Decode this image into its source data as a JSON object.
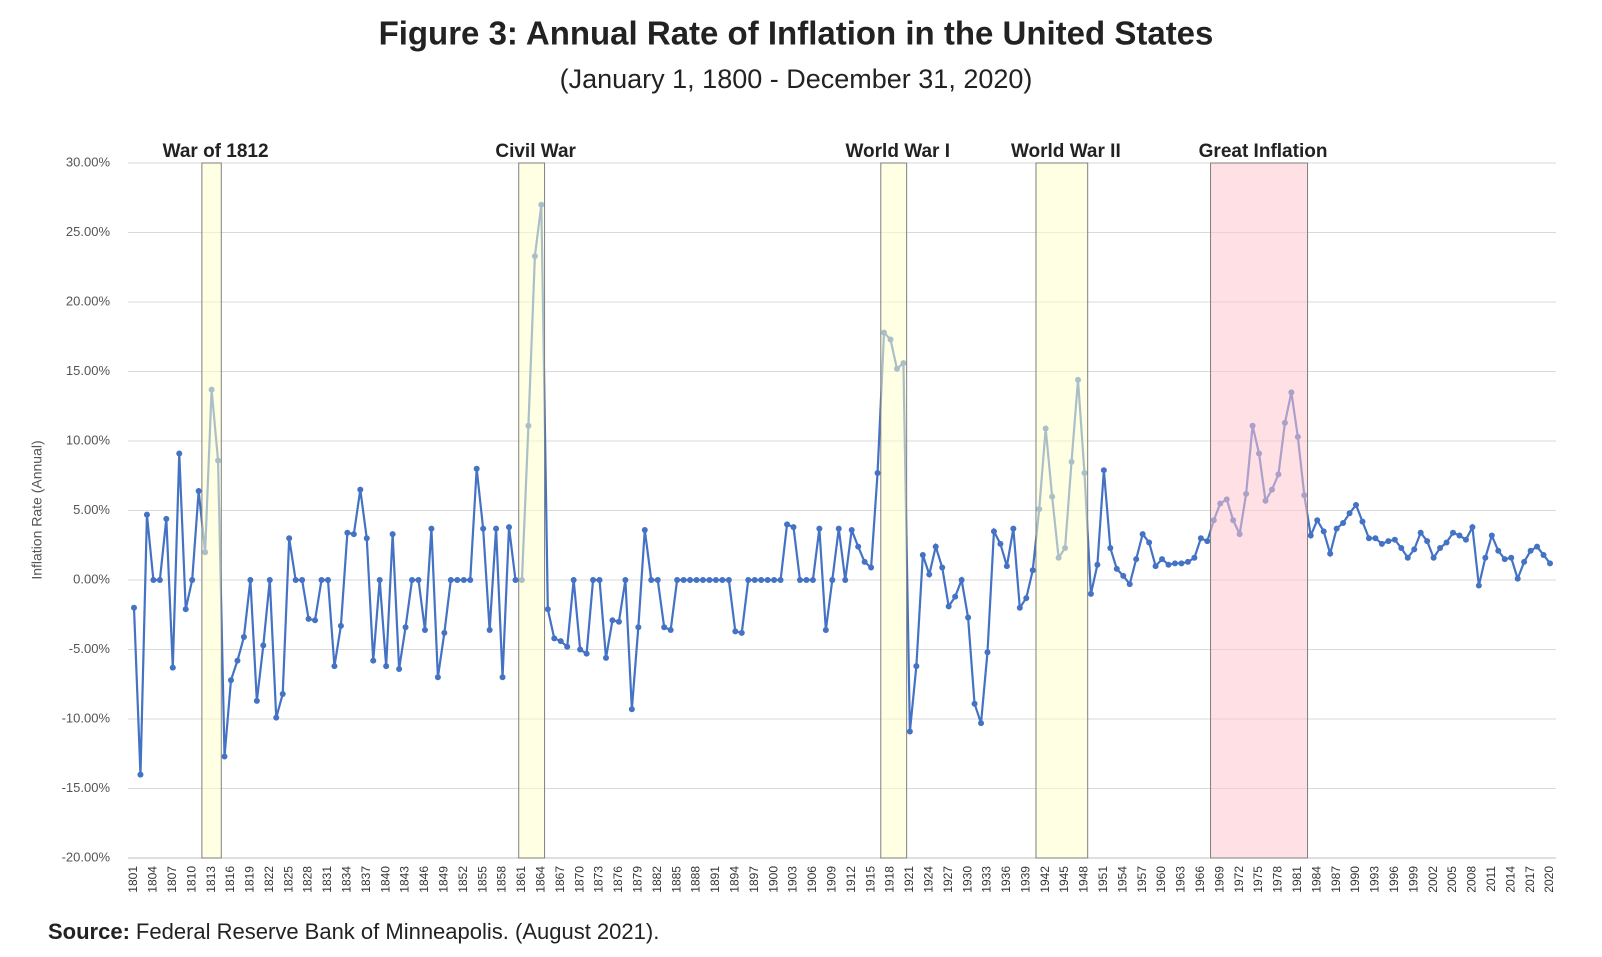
{
  "chart_data": {
    "type": "line",
    "title": "Figure 3: Annual Rate of Inflation in the United States",
    "subtitle": "(January 1, 1800 - December 31, 2020)",
    "y_label": "Inflation Rate (Annual)",
    "source": {
      "label": "Source:",
      "text": "Federal Reserve Bank of Minneapolis. (August 2021)."
    },
    "color": "#4472c4",
    "grid": true,
    "ylim": [
      -20,
      30
    ],
    "yticks": [
      {
        "value": -20,
        "label": "-20.00%"
      },
      {
        "value": -15,
        "label": "-15.00%"
      },
      {
        "value": -10,
        "label": "-10.00%"
      },
      {
        "value": -5,
        "label": "-5.00%"
      },
      {
        "value": 0,
        "label": "0.00%"
      },
      {
        "value": 5,
        "label": "5.00%"
      },
      {
        "value": 10,
        "label": "10.00%"
      },
      {
        "value": 15,
        "label": "15.00%"
      },
      {
        "value": 20,
        "label": "20.00%"
      },
      {
        "value": 25,
        "label": "25.00%"
      },
      {
        "value": 30,
        "label": "30.00%"
      }
    ],
    "categories": [
      "1801",
      null,
      null,
      "1804",
      null,
      null,
      "1807",
      null,
      null,
      "1810",
      null,
      null,
      "1813",
      null,
      null,
      "1816",
      null,
      null,
      "1819",
      null,
      null,
      "1822",
      null,
      null,
      "1825",
      null,
      null,
      "1828",
      null,
      null,
      "1831",
      null,
      null,
      "1834",
      null,
      null,
      "1837",
      null,
      null,
      "1840",
      null,
      null,
      "1843",
      null,
      null,
      "1846",
      null,
      null,
      "1849",
      null,
      null,
      "1852",
      null,
      null,
      "1855",
      null,
      null,
      "1858",
      null,
      null,
      "1861",
      null,
      null,
      "1864",
      null,
      null,
      "1867",
      null,
      null,
      "1870",
      null,
      null,
      "1873",
      null,
      null,
      "1876",
      null,
      null,
      "1879",
      null,
      null,
      "1882",
      null,
      null,
      "1885",
      null,
      null,
      "1888",
      null,
      null,
      "1891",
      null,
      null,
      "1894",
      null,
      null,
      "1897",
      null,
      null,
      "1900",
      null,
      null,
      "1903",
      null,
      null,
      "1906",
      null,
      null,
      "1909",
      null,
      null,
      "1912",
      null,
      null,
      "1915",
      null,
      null,
      "1918",
      null,
      null,
      "1921",
      null,
      null,
      "1924",
      null,
      null,
      "1927",
      null,
      null,
      "1930",
      null,
      null,
      "1933",
      null,
      null,
      "1936",
      null,
      null,
      "1939",
      null,
      null,
      "1942",
      null,
      null,
      "1945",
      null,
      null,
      "1948",
      null,
      null,
      "1951",
      null,
      null,
      "1954",
      null,
      null,
      "1957",
      null,
      null,
      "1960",
      null,
      null,
      "1963",
      null,
      null,
      "1966",
      null,
      null,
      "1969",
      null,
      null,
      "1972",
      null,
      null,
      "1975",
      null,
      null,
      "1978",
      null,
      null,
      "1981",
      null,
      null,
      "1984",
      null,
      null,
      "1987",
      null,
      null,
      "1990",
      null,
      null,
      "1993",
      null,
      null,
      "1996",
      null,
      null,
      "1999",
      null,
      null,
      "2002",
      null,
      null,
      "2005",
      null,
      null,
      "2008",
      null,
      null,
      "2011",
      null,
      null,
      "2014",
      null,
      null,
      "2017",
      null,
      null,
      "2020"
    ],
    "values": [
      -2.0,
      -14.0,
      4.7,
      0,
      0,
      4.4,
      -6.3,
      9.1,
      -2.1,
      0,
      6.4,
      2.0,
      13.7,
      8.6,
      -12.7,
      -7.2,
      -5.8,
      -4.1,
      0,
      -8.7,
      -4.7,
      0,
      -9.9,
      -8.2,
      3.0,
      0,
      0,
      -2.8,
      -2.9,
      0,
      0,
      -6.2,
      -3.3,
      3.4,
      3.3,
      6.5,
      3.0,
      -5.8,
      0,
      -6.2,
      3.3,
      -6.4,
      -3.4,
      0,
      0,
      -3.6,
      3.7,
      -7.0,
      -3.8,
      0,
      0,
      0,
      0,
      8.0,
      3.7,
      -3.6,
      3.7,
      -7.0,
      3.8,
      0,
      0,
      11.1,
      23.3,
      27.0,
      -2.1,
      -4.2,
      -4.4,
      -4.8,
      0,
      -5.0,
      -5.3,
      0,
      0,
      -5.6,
      -2.9,
      -3.0,
      0,
      -9.3,
      -3.4,
      3.6,
      0,
      0,
      -3.4,
      -3.6,
      0,
      0,
      0,
      0,
      0,
      0,
      0,
      0,
      0,
      -3.7,
      -3.8,
      0,
      0,
      0,
      0,
      0,
      0,
      4.0,
      3.8,
      0,
      0,
      0,
      3.7,
      -3.6,
      0,
      3.7,
      0,
      3.6,
      2.4,
      1.3,
      0.9,
      7.7,
      17.8,
      17.3,
      15.2,
      15.6,
      -10.9,
      -6.2,
      1.8,
      0.4,
      2.4,
      0.9,
      -1.9,
      -1.2,
      0,
      -2.7,
      -8.9,
      -10.3,
      -5.2,
      3.5,
      2.6,
      1.0,
      3.7,
      -2.0,
      -1.3,
      0.7,
      5.1,
      10.9,
      6.0,
      1.6,
      2.3,
      8.5,
      14.4,
      7.7,
      -1.0,
      1.1,
      7.9,
      2.3,
      0.8,
      0.3,
      -0.3,
      1.5,
      3.3,
      2.7,
      1.0,
      1.5,
      1.1,
      1.2,
      1.2,
      1.3,
      1.6,
      3.0,
      2.8,
      4.3,
      5.5,
      5.8,
      4.3,
      3.3,
      6.2,
      11.1,
      9.1,
      5.7,
      6.5,
      7.6,
      11.3,
      13.5,
      10.3,
      6.1,
      3.2,
      4.3,
      3.5,
      1.9,
      3.7,
      4.1,
      4.8,
      5.4,
      4.2,
      3.0,
      3.0,
      2.6,
      2.8,
      2.9,
      2.3,
      1.6,
      2.2,
      3.4,
      2.8,
      1.6,
      2.3,
      2.7,
      3.4,
      3.2,
      2.9,
      3.8,
      -0.4,
      1.6,
      3.2,
      2.1,
      1.5,
      1.6,
      0.1,
      1.3,
      2.1,
      2.4,
      1.8,
      1.2
    ],
    "shaded_periods": [
      {
        "label": "War of 1812",
        "start": 1812,
        "end": 1815,
        "color": "#ffffcc"
      },
      {
        "label": "Civil War",
        "start": 1861,
        "end": 1865,
        "color": "#ffffcc"
      },
      {
        "label": "World War I",
        "start": 1917,
        "end": 1921,
        "color": "#ffffcc"
      },
      {
        "label": "World War II",
        "start": 1941,
        "end": 1949,
        "color": "#ffffcc"
      },
      {
        "label": "Great Inflation",
        "start": 1968,
        "end": 1983,
        "color": "#ffc7ce"
      }
    ]
  }
}
